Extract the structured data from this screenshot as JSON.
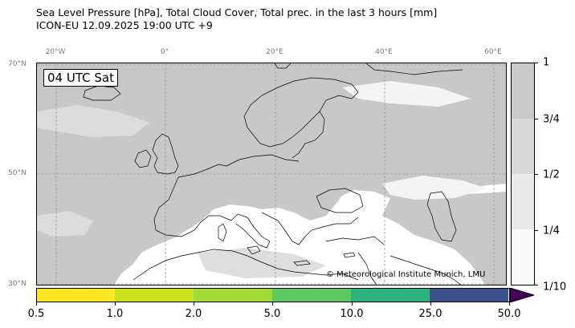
{
  "title": {
    "line1": "Sea Level Pressure [hPa], Total Cloud Cover, Total prec. in the last 3 hours [mm]",
    "line2": "ICON-EU 12.09.2025 19:00 UTC +9"
  },
  "map": {
    "time_label": "04 UTC Sat",
    "credit": "© Meteorological Institute Munich, LMU",
    "longitude_labels": [
      "20°W",
      "0°",
      "20°E",
      "40°E",
      "60°E"
    ],
    "latitude_labels": [
      "70°N",
      "50°N",
      "30°N"
    ],
    "colors": {
      "ocean_cloud": "#c8c8c8",
      "land_cloud": "#c4c4c4",
      "clear": "#ffffff",
      "grid": "#9a9a9a",
      "coastline": "#000000"
    }
  },
  "cloud_cover_legend": {
    "labels": [
      "1",
      "3/4",
      "1/2",
      "1/4",
      "1/10"
    ],
    "colors": [
      "#c9c9c9",
      "#d9d9d9",
      "#e9e9e9",
      "#f8f8f8"
    ]
  },
  "precip_legend": {
    "labels": [
      "0.5",
      "1.0",
      "2.0",
      "5.0",
      "10.0",
      "25.0",
      "50.0"
    ],
    "colors": [
      "#fde725",
      "#c8e020",
      "#a0da39",
      "#5ec962",
      "#2db27d",
      "#3b528b",
      "#440154"
    ]
  }
}
